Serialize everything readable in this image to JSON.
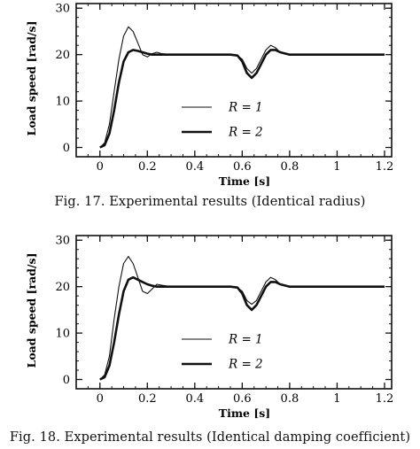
{
  "chart_data": [
    {
      "type": "line",
      "caption": "Fig. 17.   Experimental results (Identical radius)",
      "xlabel": "Time [s]",
      "ylabel": "Load speed [rad/s]",
      "xlim": [
        -0.1,
        1.23
      ],
      "ylim": [
        -2,
        31
      ],
      "xticks": [
        0,
        0.2,
        0.4,
        0.6,
        0.8,
        1,
        1.2
      ],
      "xtick_labels": [
        "0",
        "0.2",
        "0.4",
        "0.6",
        "0.8",
        "1",
        "1.2"
      ],
      "yticks": [
        0,
        10,
        20,
        30
      ],
      "ytick_labels": [
        "0",
        "10",
        "20",
        "30"
      ],
      "legend_position": "center",
      "series": [
        {
          "name": "R = 1",
          "legend_label": "R = 1",
          "style": "thin",
          "x": [
            0,
            0.02,
            0.04,
            0.06,
            0.08,
            0.1,
            0.12,
            0.14,
            0.16,
            0.18,
            0.2,
            0.22,
            0.24,
            0.26,
            0.3,
            0.35,
            0.4,
            0.45,
            0.5,
            0.55,
            0.58,
            0.6,
            0.62,
            0.64,
            0.66,
            0.68,
            0.7,
            0.72,
            0.74,
            0.76,
            0.8,
            0.85,
            0.9,
            1.0,
            1.1,
            1.2
          ],
          "y": [
            0,
            1,
            5,
            12,
            19,
            24,
            26,
            25,
            22.5,
            20,
            19.5,
            20.2,
            20.5,
            20.2,
            20,
            20,
            20,
            20,
            20,
            20,
            19.8,
            19,
            17,
            16,
            17,
            19,
            21,
            22,
            21.5,
            20.5,
            20,
            20,
            20,
            20,
            20,
            20
          ]
        },
        {
          "name": "R = 2",
          "legend_label": "R = 2",
          "style": "thick",
          "x": [
            0,
            0.02,
            0.04,
            0.06,
            0.08,
            0.1,
            0.12,
            0.14,
            0.16,
            0.18,
            0.2,
            0.22,
            0.24,
            0.26,
            0.3,
            0.35,
            0.4,
            0.45,
            0.5,
            0.55,
            0.58,
            0.6,
            0.62,
            0.64,
            0.66,
            0.68,
            0.7,
            0.72,
            0.74,
            0.76,
            0.8,
            0.85,
            0.9,
            1.0,
            1.1,
            1.2
          ],
          "y": [
            0,
            0.5,
            3,
            8,
            14,
            18.5,
            20.5,
            21,
            20.8,
            20.5,
            20.2,
            20,
            20,
            20,
            20,
            20,
            20,
            20,
            20,
            20,
            19.8,
            18.5,
            16,
            15,
            16,
            18,
            20,
            21,
            21,
            20.5,
            20,
            20,
            20,
            20,
            20,
            20
          ]
        }
      ]
    },
    {
      "type": "line",
      "caption": "Fig. 18.   Experimental results (Identical damping coefficient)",
      "xlabel": "Time [s]",
      "ylabel": "Load speed [rad/s]",
      "xlim": [
        -0.1,
        1.23
      ],
      "ylim": [
        -2,
        31
      ],
      "xticks": [
        0,
        0.2,
        0.4,
        0.6,
        0.8,
        1,
        1.2
      ],
      "xtick_labels": [
        "0",
        "0.2",
        "0.4",
        "0.6",
        "0.8",
        "1",
        "1.2"
      ],
      "yticks": [
        0,
        10,
        20,
        30
      ],
      "ytick_labels": [
        "0",
        "10",
        "20",
        "30"
      ],
      "legend_position": "center",
      "series": [
        {
          "name": "R = 1",
          "legend_label": "R = 1",
          "style": "thin",
          "x": [
            0,
            0.02,
            0.04,
            0.06,
            0.08,
            0.1,
            0.12,
            0.14,
            0.16,
            0.18,
            0.2,
            0.22,
            0.24,
            0.26,
            0.3,
            0.35,
            0.4,
            0.45,
            0.5,
            0.55,
            0.58,
            0.6,
            0.62,
            0.64,
            0.66,
            0.68,
            0.7,
            0.72,
            0.74,
            0.76,
            0.8,
            0.85,
            0.9,
            1.0,
            1.1,
            1.2
          ],
          "y": [
            0,
            1,
            5,
            13,
            20,
            25,
            26.5,
            25,
            22,
            19,
            18.5,
            19.5,
            20.5,
            20.3,
            20,
            20,
            20,
            20,
            20,
            20,
            19.8,
            19,
            17,
            16.2,
            17,
            19,
            21,
            22,
            21.5,
            20.5,
            20,
            20,
            20,
            20,
            20,
            20
          ]
        },
        {
          "name": "R = 2",
          "legend_label": "R = 2",
          "style": "thick",
          "x": [
            0,
            0.02,
            0.04,
            0.06,
            0.08,
            0.1,
            0.12,
            0.14,
            0.16,
            0.18,
            0.2,
            0.22,
            0.24,
            0.26,
            0.3,
            0.35,
            0.4,
            0.45,
            0.5,
            0.55,
            0.58,
            0.6,
            0.62,
            0.64,
            0.66,
            0.68,
            0.7,
            0.72,
            0.74,
            0.76,
            0.8,
            0.85,
            0.9,
            1.0,
            1.1,
            1.2
          ],
          "y": [
            0,
            0.5,
            3,
            8,
            14,
            19,
            21.5,
            22,
            21.5,
            21,
            20.5,
            20.2,
            20,
            20,
            20,
            20,
            20,
            20,
            20,
            20,
            19.8,
            18.5,
            16,
            15,
            16,
            18,
            20,
            21,
            21,
            20.5,
            20,
            20,
            20,
            20,
            20,
            20
          ]
        }
      ]
    }
  ]
}
